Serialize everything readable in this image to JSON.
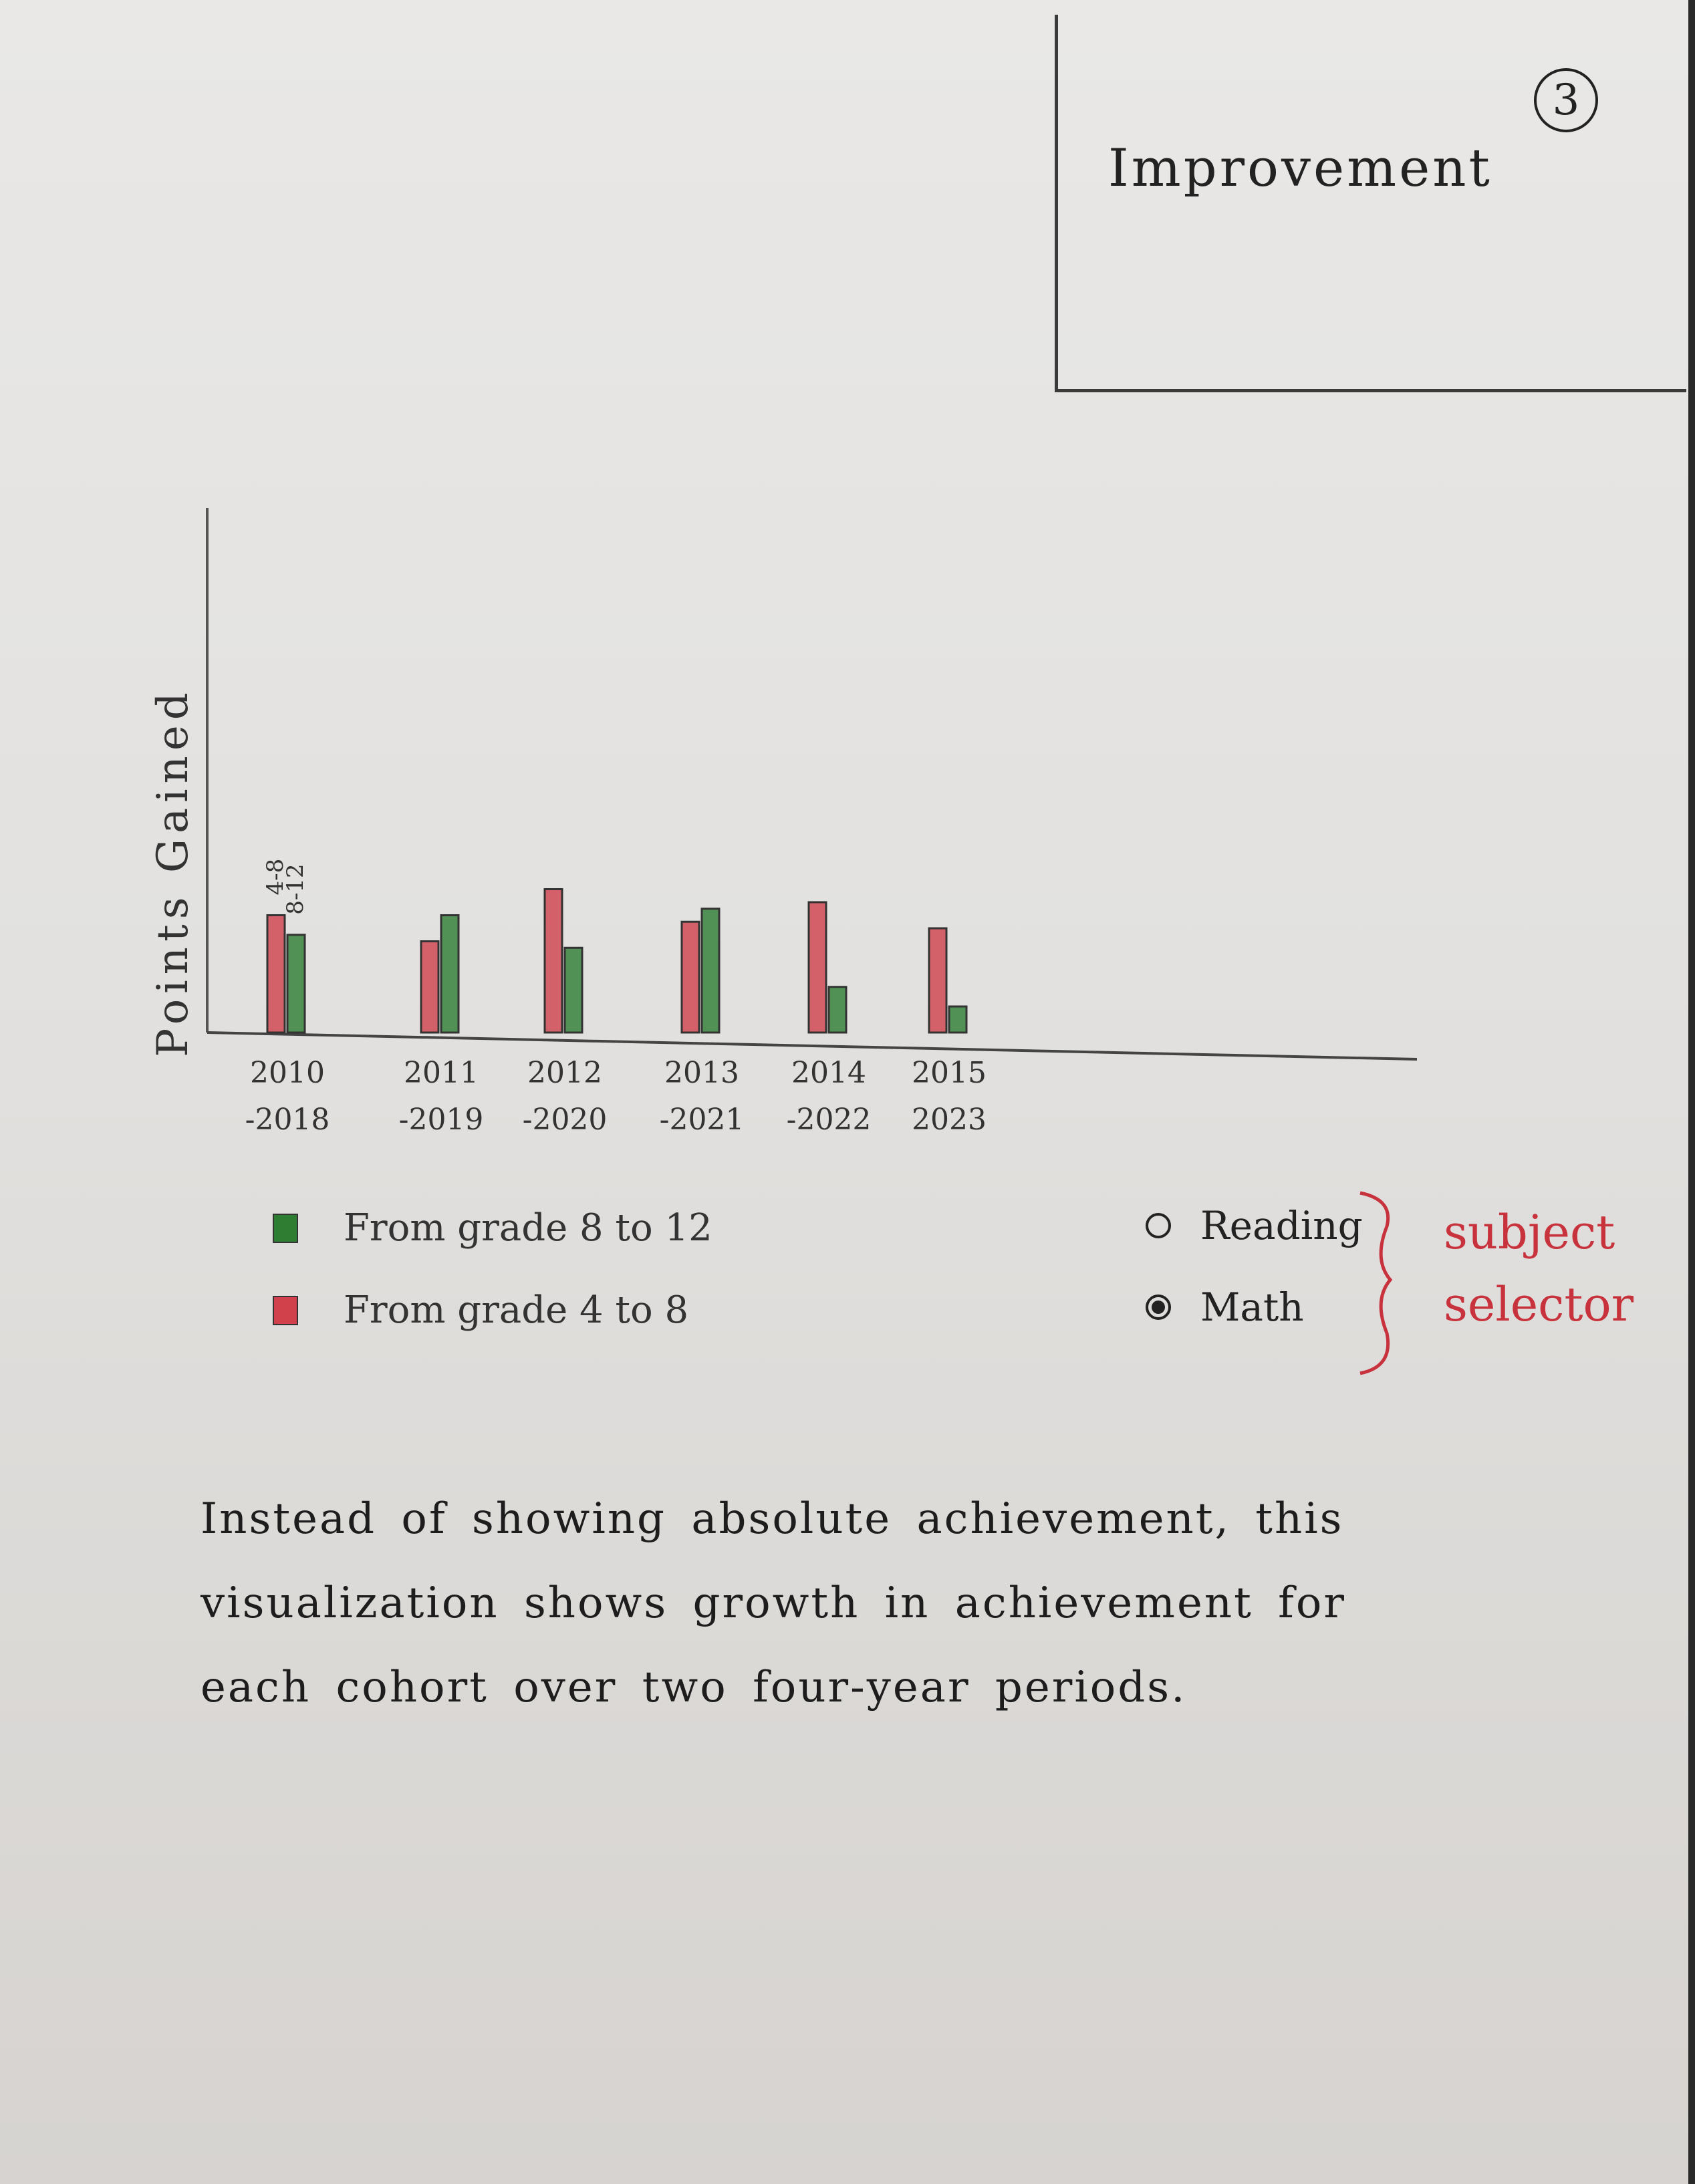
{
  "title_box": {
    "title": "Improvement",
    "page_number": "3"
  },
  "chart_data": {
    "type": "bar",
    "title": "",
    "xlabel": "",
    "ylabel": "Points Gained",
    "categories": [
      "2010-2018",
      "2011-2019",
      "2012-2020",
      "2013-2021",
      "2014-2022",
      "2015-2023"
    ],
    "tick_labels": [
      [
        "2010",
        "-2018"
      ],
      [
        "2011",
        "-2019"
      ],
      [
        "2012",
        "-2020"
      ],
      [
        "2013",
        "-2021"
      ],
      [
        "2014",
        "-2022"
      ],
      [
        "2015",
        "2023"
      ]
    ],
    "bar_annotations": [
      "4-8",
      "8-12"
    ],
    "series": [
      {
        "name": "From grade 4 to 8",
        "color": "#d0414c",
        "values": [
          18,
          14,
          22,
          17,
          20,
          16
        ]
      },
      {
        "name": "From grade 8 to 12",
        "color": "#2e7d32",
        "values": [
          15,
          18,
          13,
          19,
          7,
          4
        ]
      }
    ],
    "ylim": [
      0,
      80
    ],
    "grid": false,
    "legend_position": "bottom-left"
  },
  "legend": [
    {
      "label": "From grade 8 to 12",
      "color": "#2e7d32"
    },
    {
      "label": "From grade 4 to 8",
      "color": "#d0414c"
    }
  ],
  "subject_selector": {
    "options": [
      {
        "label": "Reading",
        "checked": false
      },
      {
        "label": "Math",
        "checked": true
      }
    ],
    "note": "subject selector",
    "note_color": "#c8323c"
  },
  "description": "Instead of showing absolute achievement, this visualization shows growth in achievement for each cohort over two four-year periods."
}
